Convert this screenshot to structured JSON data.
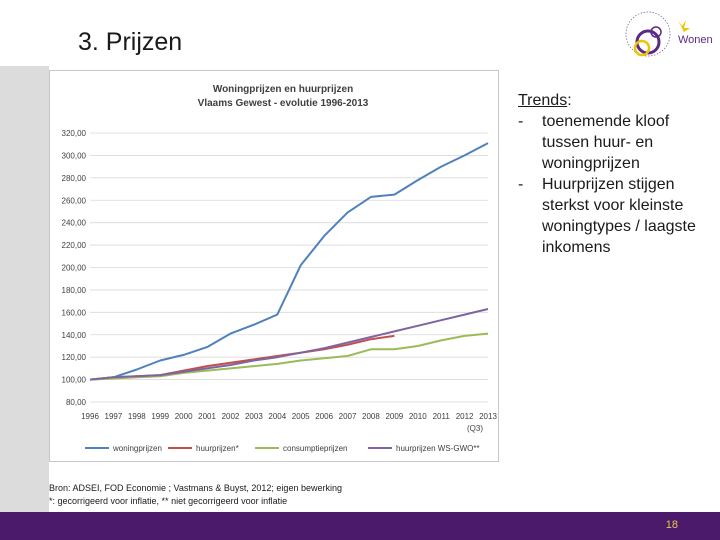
{
  "slide": {
    "title": "3. Prijzen",
    "logo_text": "Wonen",
    "page_number": "18",
    "colors": {
      "footer": "#4b1a6b",
      "page_number": "#e8c84a",
      "logo_purple": "#5b2a86",
      "logo_yellow": "#f2c200"
    }
  },
  "trends": {
    "heading": "Trends",
    "items": [
      {
        "dash": "-",
        "text": "toenemende kloof tussen huur- en woningprijzen"
      },
      {
        "dash": "-",
        "text": "Huurprijzen stijgen sterkst voor kleinste woningtypes / laagste inkomens"
      }
    ]
  },
  "source": {
    "line1": "Bron: ADSEI, FOD Economie ; Vastmans & Buyst, 2012; eigen bewerking",
    "line2": "*: gecorrigeerd voor inflatie, ** niet gecorrigeerd voor inflatie"
  },
  "chart_data": {
    "type": "line",
    "title": "Woningprijzen en huurprijzen",
    "subtitle": "Vlaams Gewest - evolutie 1996-2013",
    "x": [
      "1996",
      "1997",
      "1998",
      "1999",
      "2000",
      "2001",
      "2002",
      "2003",
      "2004",
      "2005",
      "2006",
      "2007",
      "2008",
      "2009",
      "2010",
      "2011",
      "2012",
      "2013"
    ],
    "x_note": "(Q3)",
    "ylim": [
      80,
      320
    ],
    "yticks": [
      "80,00",
      "100,00",
      "120,00",
      "140,00",
      "160,00",
      "180,00",
      "200,00",
      "220,00",
      "240,00",
      "260,00",
      "280,00",
      "300,00",
      "320,00"
    ],
    "grid": true,
    "legend_position": "bottom",
    "series": [
      {
        "name": "woningprijzen",
        "color": "#4f81bd",
        "values": [
          100,
          102,
          109,
          117,
          122,
          129,
          141,
          149,
          158,
          202,
          228,
          249,
          263,
          265,
          278,
          290,
          300,
          311
        ]
      },
      {
        "name": "huurprijzen*",
        "color": "#c0504d",
        "values": [
          100,
          102,
          103,
          104,
          108,
          112,
          115,
          118,
          121,
          124,
          127,
          131,
          136,
          139,
          null,
          null,
          null,
          null
        ]
      },
      {
        "name": "consumptieprijzen",
        "color": "#9bbb59",
        "values": [
          100,
          101,
          102,
          103,
          106,
          108,
          110,
          112,
          114,
          117,
          119,
          121,
          127,
          127,
          130,
          135,
          139,
          141
        ]
      },
      {
        "name": "huurprijzen WS-GWO**",
        "color": "#8064a2",
        "values": [
          100,
          102,
          103,
          104,
          107,
          110,
          113,
          117,
          120,
          124,
          128,
          133,
          138,
          143,
          148,
          153,
          158,
          163
        ]
      }
    ]
  }
}
